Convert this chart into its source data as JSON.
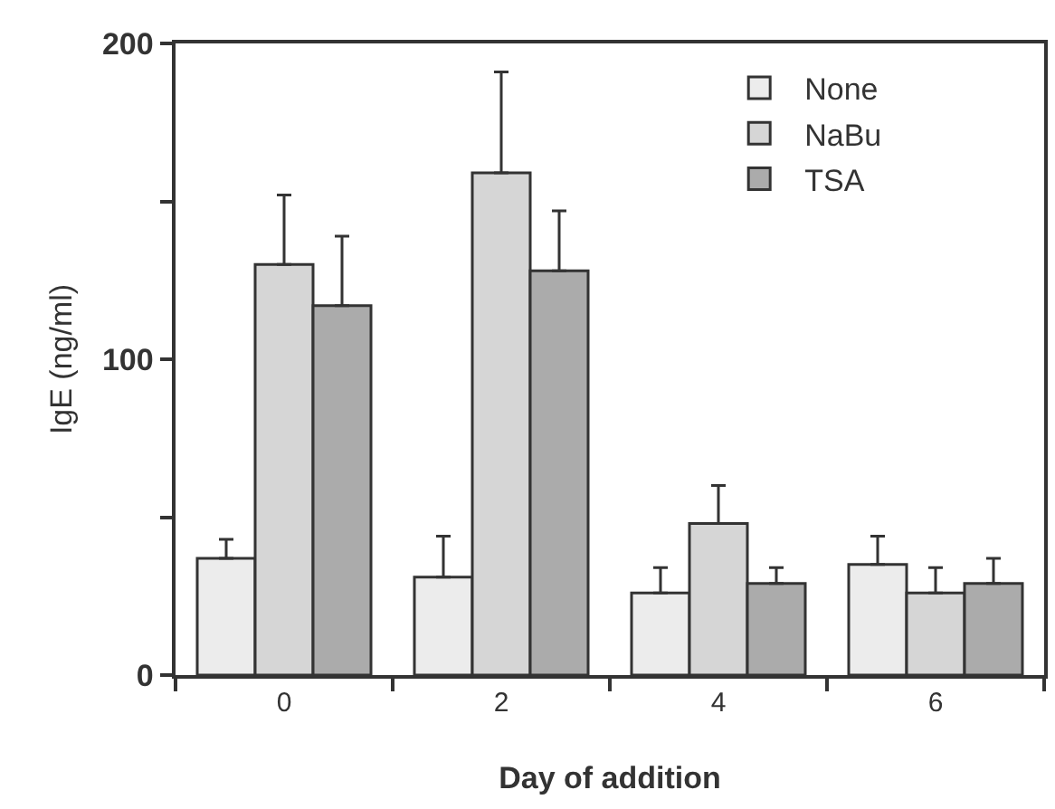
{
  "chart_data": {
    "type": "bar",
    "xlabel": "Day of addition",
    "ylabel": "IgE (ng/ml)",
    "categories": [
      "0",
      "2",
      "4",
      "6"
    ],
    "series": [
      {
        "name": "None",
        "color": "#ececec",
        "values": [
          37,
          31,
          26,
          35
        ],
        "errors": [
          [
            37,
            43
          ],
          [
            31,
            44
          ],
          [
            26,
            34
          ],
          [
            35,
            44
          ]
        ]
      },
      {
        "name": "NaBu",
        "color": "#d6d6d6",
        "values": [
          130,
          159,
          48,
          26
        ],
        "errors": [
          [
            130,
            152
          ],
          [
            159,
            191
          ],
          [
            48,
            60
          ],
          [
            26,
            34
          ]
        ]
      },
      {
        "name": "TSA",
        "color": "#ababab",
        "values": [
          117,
          128,
          29,
          29
        ],
        "errors": [
          [
            117,
            139
          ],
          [
            128,
            147
          ],
          [
            29,
            34
          ],
          [
            29,
            37
          ]
        ]
      }
    ],
    "ylim": [
      0,
      200
    ],
    "yticks": [
      0,
      {
        "value": 50,
        "label": null
      },
      100,
      {
        "value": 150,
        "label": null
      },
      200
    ],
    "grid": false,
    "legend": "top right"
  }
}
